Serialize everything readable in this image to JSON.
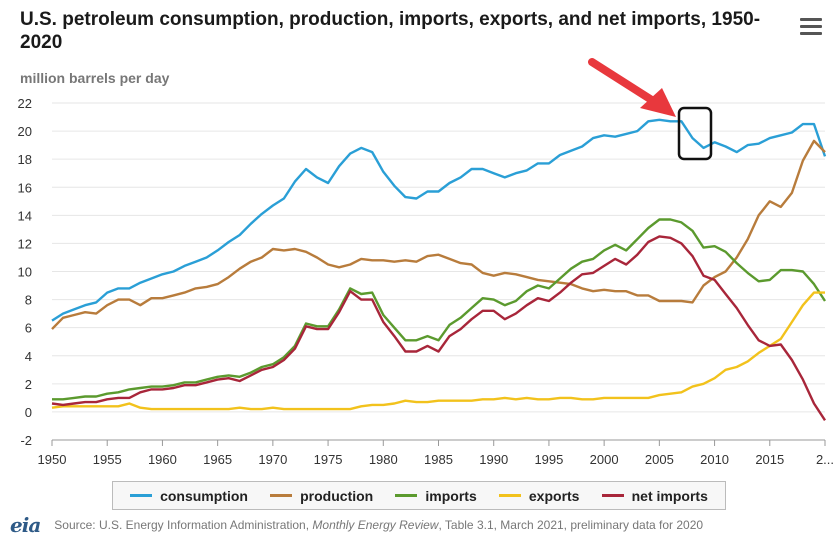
{
  "title": "U.S. petroleum consumption, production, imports, exports, and net imports, 1950-2020",
  "units_label": "million barrels per day",
  "logo_text": "eia",
  "source": {
    "prefix": "Source: U.S. Energy Information Administration, ",
    "publication": "Monthly Energy Review",
    "suffix": ", Table 3.1, March 2021, preliminary data for 2020"
  },
  "chart_data": {
    "type": "line",
    "title": "U.S. petroleum consumption, production, imports, exports, and net imports, 1950-2020",
    "ylabel": "million barrels per day",
    "xlabel": "",
    "xlim": [
      1950,
      2020
    ],
    "ylim": [
      -2,
      22
    ],
    "x_ticks": [
      "1950",
      "1955",
      "1960",
      "1965",
      "1970",
      "1975",
      "1980",
      "1985",
      "1990",
      "1995",
      "2000",
      "2005",
      "2010",
      "2015",
      "2..."
    ],
    "y_ticks": [
      "-2",
      "0",
      "2",
      "4",
      "6",
      "8",
      "10",
      "12",
      "14",
      "16",
      "18",
      "20",
      "22"
    ],
    "grid": "horizontal",
    "legend_position": "bottom",
    "x": [
      1950,
      1951,
      1952,
      1953,
      1954,
      1955,
      1956,
      1957,
      1958,
      1959,
      1960,
      1961,
      1962,
      1963,
      1964,
      1965,
      1966,
      1967,
      1968,
      1969,
      1970,
      1971,
      1972,
      1973,
      1974,
      1975,
      1976,
      1977,
      1978,
      1979,
      1980,
      1981,
      1982,
      1983,
      1984,
      1985,
      1986,
      1987,
      1988,
      1989,
      1990,
      1991,
      1992,
      1993,
      1994,
      1995,
      1996,
      1997,
      1998,
      1999,
      2000,
      2001,
      2002,
      2003,
      2004,
      2005,
      2006,
      2007,
      2008,
      2009,
      2010,
      2011,
      2012,
      2013,
      2014,
      2015,
      2016,
      2017,
      2018,
      2019,
      2020
    ],
    "series": [
      {
        "name": "consumption",
        "color": "#2a9fd6",
        "values": [
          6.5,
          7.0,
          7.3,
          7.6,
          7.8,
          8.5,
          8.8,
          8.8,
          9.2,
          9.5,
          9.8,
          10.0,
          10.4,
          10.7,
          11.0,
          11.5,
          12.1,
          12.6,
          13.4,
          14.1,
          14.7,
          15.2,
          16.4,
          17.3,
          16.7,
          16.3,
          17.5,
          18.4,
          18.8,
          18.5,
          17.1,
          16.1,
          15.3,
          15.2,
          15.7,
          15.7,
          16.3,
          16.7,
          17.3,
          17.3,
          17.0,
          16.7,
          17.0,
          17.2,
          17.7,
          17.7,
          18.3,
          18.6,
          18.9,
          19.5,
          19.7,
          19.6,
          19.8,
          20.0,
          20.7,
          20.8,
          20.7,
          20.7,
          19.5,
          18.8,
          19.2,
          18.9,
          18.5,
          19.0,
          19.1,
          19.5,
          19.7,
          19.9,
          20.5,
          20.5,
          18.2
        ]
      },
      {
        "name": "production",
        "color": "#b87c3c",
        "values": [
          5.9,
          6.7,
          6.9,
          7.1,
          7.0,
          7.6,
          8.0,
          8.0,
          7.6,
          8.1,
          8.1,
          8.3,
          8.5,
          8.8,
          8.9,
          9.1,
          9.6,
          10.2,
          10.7,
          11.0,
          11.6,
          11.5,
          11.6,
          11.4,
          11.0,
          10.5,
          10.3,
          10.5,
          10.9,
          10.8,
          10.8,
          10.7,
          10.8,
          10.7,
          11.1,
          11.2,
          10.9,
          10.6,
          10.5,
          9.9,
          9.7,
          9.9,
          9.8,
          9.6,
          9.4,
          9.3,
          9.2,
          9.1,
          8.8,
          8.6,
          8.7,
          8.6,
          8.6,
          8.3,
          8.3,
          7.9,
          7.9,
          7.9,
          7.8,
          9.0,
          9.6,
          10.0,
          11.0,
          12.3,
          14.0,
          15.0,
          14.6,
          15.6,
          17.9,
          19.3,
          18.5
        ]
      },
      {
        "name": "imports",
        "color": "#5b9a2e",
        "values": [
          0.9,
          0.9,
          1.0,
          1.1,
          1.1,
          1.3,
          1.4,
          1.6,
          1.7,
          1.8,
          1.8,
          1.9,
          2.1,
          2.1,
          2.3,
          2.5,
          2.6,
          2.5,
          2.8,
          3.2,
          3.4,
          3.9,
          4.7,
          6.3,
          6.1,
          6.1,
          7.3,
          8.8,
          8.4,
          8.5,
          6.9,
          6.0,
          5.1,
          5.1,
          5.4,
          5.1,
          6.2,
          6.7,
          7.4,
          8.1,
          8.0,
          7.6,
          7.9,
          8.6,
          9.0,
          8.8,
          9.5,
          10.2,
          10.7,
          10.9,
          11.5,
          11.9,
          11.5,
          12.3,
          13.1,
          13.7,
          13.7,
          13.5,
          12.9,
          11.7,
          11.8,
          11.4,
          10.6,
          9.9,
          9.3,
          9.4,
          10.1,
          10.1,
          10.0,
          9.1,
          7.9
        ]
      },
      {
        "name": "exports",
        "color": "#f2c21c",
        "values": [
          0.3,
          0.4,
          0.4,
          0.4,
          0.4,
          0.4,
          0.4,
          0.6,
          0.3,
          0.2,
          0.2,
          0.2,
          0.2,
          0.2,
          0.2,
          0.2,
          0.2,
          0.3,
          0.2,
          0.2,
          0.3,
          0.2,
          0.2,
          0.2,
          0.2,
          0.2,
          0.2,
          0.2,
          0.4,
          0.5,
          0.5,
          0.6,
          0.8,
          0.7,
          0.7,
          0.8,
          0.8,
          0.8,
          0.8,
          0.9,
          0.9,
          1.0,
          0.9,
          1.0,
          0.9,
          0.9,
          1.0,
          1.0,
          0.9,
          0.9,
          1.0,
          1.0,
          1.0,
          1.0,
          1.0,
          1.2,
          1.3,
          1.4,
          1.8,
          2.0,
          2.4,
          3.0,
          3.2,
          3.6,
          4.2,
          4.7,
          5.2,
          6.4,
          7.6,
          8.5,
          8.5
        ]
      },
      {
        "name": "net imports",
        "color": "#a8263a",
        "values": [
          0.6,
          0.5,
          0.6,
          0.7,
          0.7,
          0.9,
          1.0,
          1.0,
          1.4,
          1.6,
          1.6,
          1.7,
          1.9,
          1.9,
          2.1,
          2.3,
          2.4,
          2.2,
          2.6,
          3.0,
          3.2,
          3.7,
          4.5,
          6.1,
          5.9,
          5.9,
          7.1,
          8.6,
          8.0,
          8.0,
          6.4,
          5.4,
          4.3,
          4.3,
          4.7,
          4.3,
          5.4,
          5.9,
          6.6,
          7.2,
          7.2,
          6.6,
          7.0,
          7.6,
          8.1,
          7.9,
          8.5,
          9.2,
          9.8,
          9.9,
          10.4,
          10.9,
          10.5,
          11.2,
          12.1,
          12.5,
          12.4,
          12.0,
          11.1,
          9.7,
          9.4,
          8.4,
          7.4,
          6.2,
          5.1,
          4.7,
          4.8,
          3.7,
          2.3,
          0.6,
          -0.6
        ]
      }
    ],
    "annotation": "red arrow pointing to boxed consumption dip around 2007-2009"
  }
}
